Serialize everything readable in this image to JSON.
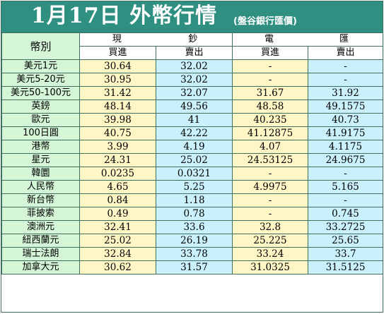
{
  "header": {
    "title": "1月17日 外幣行情",
    "subtitle": "(盤谷銀行匯價)"
  },
  "table": {
    "corner_label": "幣別",
    "groups": [
      {
        "part1": "現",
        "part2": "鈔"
      },
      {
        "part1": "電",
        "part2": "匯"
      }
    ],
    "subheaders": [
      "買進",
      "賣出",
      "買進",
      "賣出"
    ],
    "rows": [
      {
        "currency": "美元1元",
        "cash_buy": "30.64",
        "cash_sell": "32.02",
        "tt_buy": "-",
        "tt_sell": "-"
      },
      {
        "currency": "美元5-20元",
        "cash_buy": "30.95",
        "cash_sell": "32.02",
        "tt_buy": "-",
        "tt_sell": "-"
      },
      {
        "currency": "美元50-100元",
        "cash_buy": "31.42",
        "cash_sell": "32.07",
        "tt_buy": "31.67",
        "tt_sell": "31.92"
      },
      {
        "currency": "英鎊",
        "cash_buy": "48.14",
        "cash_sell": "49.56",
        "tt_buy": "48.58",
        "tt_sell": "49.1575"
      },
      {
        "currency": "歐元",
        "cash_buy": "39.98",
        "cash_sell": "41",
        "tt_buy": "40.235",
        "tt_sell": "40.73"
      },
      {
        "currency": "100日圓",
        "cash_buy": "40.75",
        "cash_sell": "42.22",
        "tt_buy": "41.12875",
        "tt_sell": "41.9175"
      },
      {
        "currency": "港幣",
        "cash_buy": "3.99",
        "cash_sell": "4.19",
        "tt_buy": "4.07",
        "tt_sell": "4.1175"
      },
      {
        "currency": "星元",
        "cash_buy": "24.31",
        "cash_sell": "25.02",
        "tt_buy": "24.53125",
        "tt_sell": "24.9675"
      },
      {
        "currency": "韓圜",
        "cash_buy": "0.0235",
        "cash_sell": "0.0321",
        "tt_buy": "-",
        "tt_sell": "-"
      },
      {
        "currency": "人民幣",
        "cash_buy": "4.65",
        "cash_sell": "5.25",
        "tt_buy": "4.9975",
        "tt_sell": "5.165"
      },
      {
        "currency": "新台幣",
        "cash_buy": "0.84",
        "cash_sell": "1.18",
        "tt_buy": "-",
        "tt_sell": "-"
      },
      {
        "currency": "菲披索",
        "cash_buy": "0.49",
        "cash_sell": "0.78",
        "tt_buy": "-",
        "tt_sell": "0.745"
      },
      {
        "currency": "澳洲元",
        "cash_buy": "32.41",
        "cash_sell": "33.6",
        "tt_buy": "32.8",
        "tt_sell": "33.2725"
      },
      {
        "currency": "紐西蘭元",
        "cash_buy": "25.02",
        "cash_sell": "26.19",
        "tt_buy": "25.225",
        "tt_sell": "25.65"
      },
      {
        "currency": "瑞士法朗",
        "cash_buy": "32.84",
        "cash_sell": "33.78",
        "tt_buy": "33.24",
        "tt_sell": "33.7"
      },
      {
        "currency": "加拿大元",
        "cash_buy": "30.62",
        "cash_sell": "31.57",
        "tt_buy": "31.0325",
        "tt_sell": "31.5125"
      }
    ]
  },
  "colors": {
    "title_bar": "#2f8f80",
    "currency_column": "#d4f5d6",
    "buy_column": "#fff6c6",
    "sell_column": "#c9f0fb",
    "border": "#3f6f5f"
  }
}
